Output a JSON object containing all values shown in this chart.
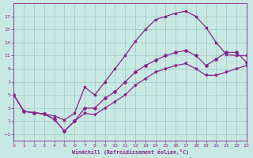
{
  "bg_color": "#c8e8e4",
  "grid_color": "#9ec8c4",
  "line_color": "#882288",
  "xlabel": "Windchill (Refroidissement éolien,°C)",
  "xlim": [
    0,
    23
  ],
  "ylim": [
    -2,
    19
  ],
  "xticks": [
    0,
    1,
    2,
    3,
    4,
    5,
    6,
    7,
    8,
    9,
    10,
    11,
    12,
    13,
    14,
    15,
    16,
    17,
    18,
    19,
    20,
    21,
    22,
    23
  ],
  "yticks": [
    -1,
    1,
    3,
    5,
    7,
    9,
    11,
    13,
    15,
    17
  ],
  "curve1_x": [
    0,
    1,
    2,
    3,
    4,
    5,
    6,
    7,
    8,
    9,
    10,
    11,
    12,
    13,
    14,
    15,
    16,
    17,
    18,
    19,
    20,
    21,
    22,
    23
  ],
  "curve1_y": [
    5.0,
    2.5,
    2.3,
    2.1,
    1.8,
    1.2,
    2.2,
    6.2,
    5.0,
    7.0,
    9.0,
    11.0,
    13.2,
    15.0,
    16.5,
    17.0,
    17.5,
    17.8,
    17.0,
    15.3,
    13.0,
    11.2,
    11.0,
    11.0
  ],
  "curve2_x": [
    0,
    1,
    2,
    3,
    4,
    5,
    6,
    7,
    8,
    9,
    10,
    11,
    12,
    13,
    14,
    15,
    16,
    17,
    18,
    19,
    20,
    21,
    22,
    23
  ],
  "curve2_y": [
    5.0,
    2.5,
    2.3,
    2.1,
    1.3,
    -0.5,
    1.0,
    3.0,
    3.0,
    4.5,
    5.5,
    7.0,
    8.5,
    9.5,
    10.3,
    11.0,
    11.5,
    11.8,
    11.0,
    9.5,
    10.5,
    11.5,
    11.5,
    10.0
  ],
  "curve3_x": [
    0,
    1,
    2,
    3,
    4,
    5,
    6,
    7,
    8,
    9,
    10,
    11,
    12,
    13,
    14,
    15,
    16,
    17,
    18,
    19,
    20,
    21,
    22,
    23
  ],
  "curve3_y": [
    5.0,
    2.5,
    2.3,
    2.1,
    1.3,
    -0.5,
    1.0,
    2.2,
    2.0,
    3.0,
    4.0,
    5.0,
    6.5,
    7.5,
    8.5,
    9.0,
    9.5,
    9.8,
    9.0,
    8.0,
    8.0,
    8.5,
    9.0,
    9.5
  ]
}
